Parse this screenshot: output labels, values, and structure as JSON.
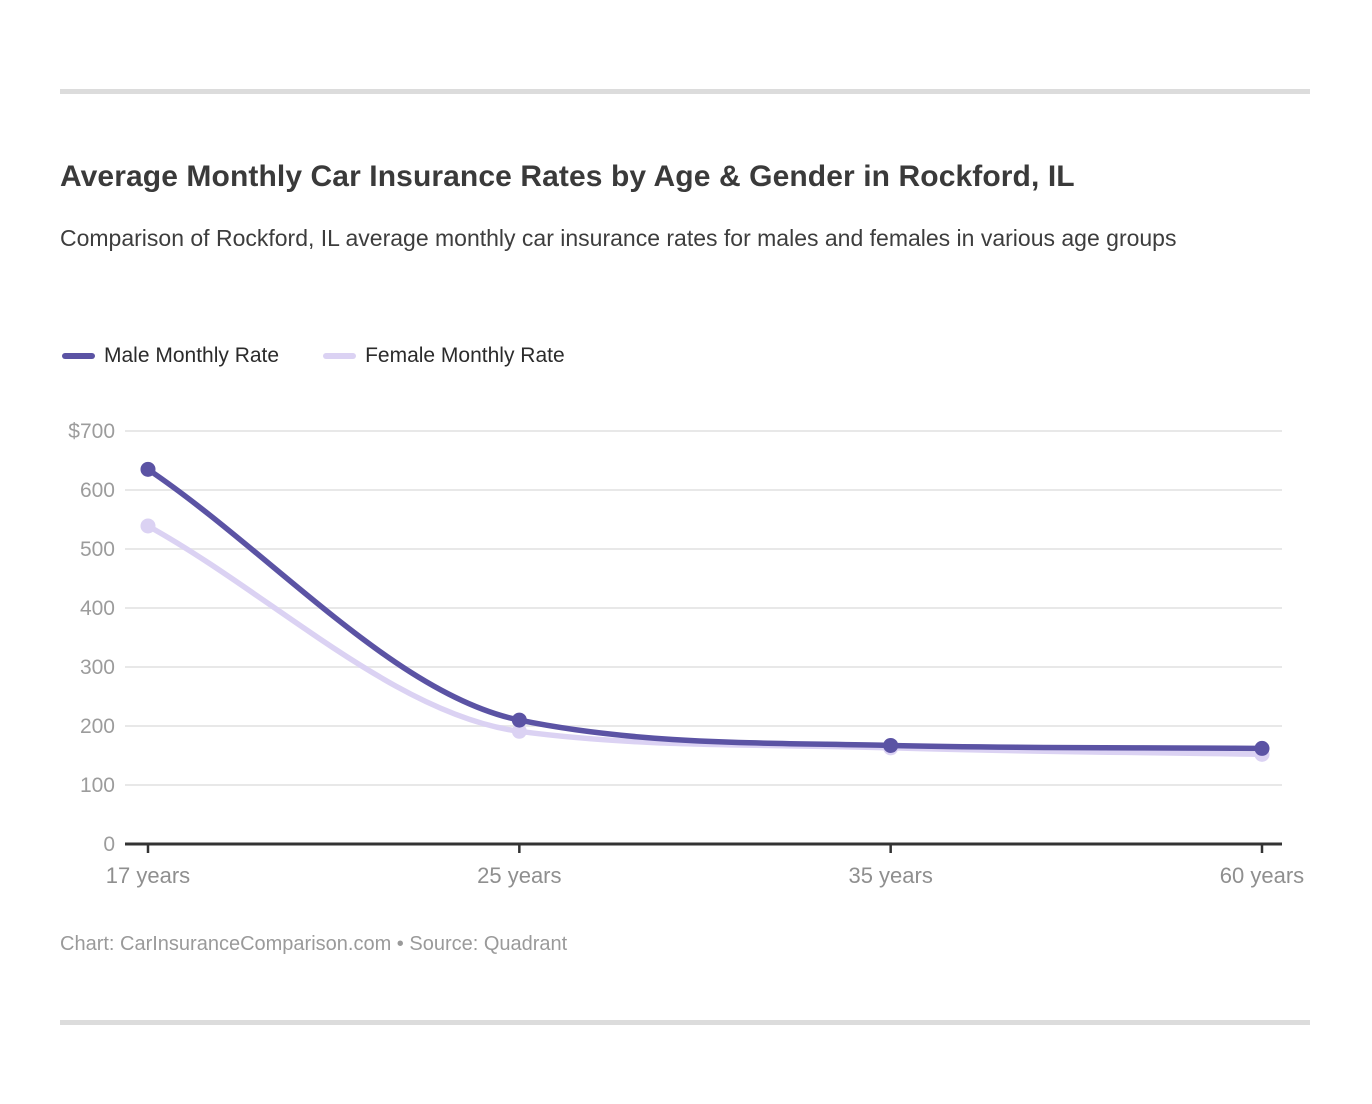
{
  "header": {
    "title": "Average Monthly Car Insurance Rates by Age & Gender in Rockford, IL",
    "subtitle": "Comparison of Rockford, IL average monthly car insurance rates for males and females in various age groups"
  },
  "legend": {
    "items": [
      {
        "label": "Male Monthly Rate",
        "color": "#5B53A4"
      },
      {
        "label": "Female Monthly Rate",
        "color": "#DBD2F3"
      }
    ]
  },
  "chart_data": {
    "type": "line",
    "title": "Average Monthly Car Insurance Rates by Age & Gender in Rockford, IL",
    "categories": [
      "17 years",
      "25 years",
      "35 years",
      "60 years"
    ],
    "series": [
      {
        "name": "Male Monthly Rate",
        "color": "#5B53A4",
        "values": [
          635,
          210,
          167,
          162
        ]
      },
      {
        "name": "Female Monthly Rate",
        "color": "#DBD2F3",
        "values": [
          539,
          191,
          163,
          152
        ]
      }
    ],
    "xlabel": "",
    "ylabel": "",
    "ylim": [
      0,
      700
    ],
    "ytick_step": 100,
    "ytick_top_prefix": "$",
    "y_tick_labels": [
      "$700",
      "600",
      "500",
      "400",
      "300",
      "200",
      "100",
      "0"
    ],
    "grid": true,
    "legend_position": "top-left"
  },
  "footer": {
    "credit": "Chart: CarInsuranceComparison.com • Source: Quadrant"
  },
  "colors": {
    "male_line": "#5B53A4",
    "female_line": "#DBD2F3",
    "gridline": "#E8E8E8",
    "axis_line": "#333333",
    "y_tick_label": "#9C9C9C",
    "x_tick_label": "#8F8F8F",
    "divider": "#DCDCDC",
    "title_text": "#3A3A3A",
    "subtitle_text": "#3D3D3D",
    "footer_text": "#9A9A9A"
  }
}
